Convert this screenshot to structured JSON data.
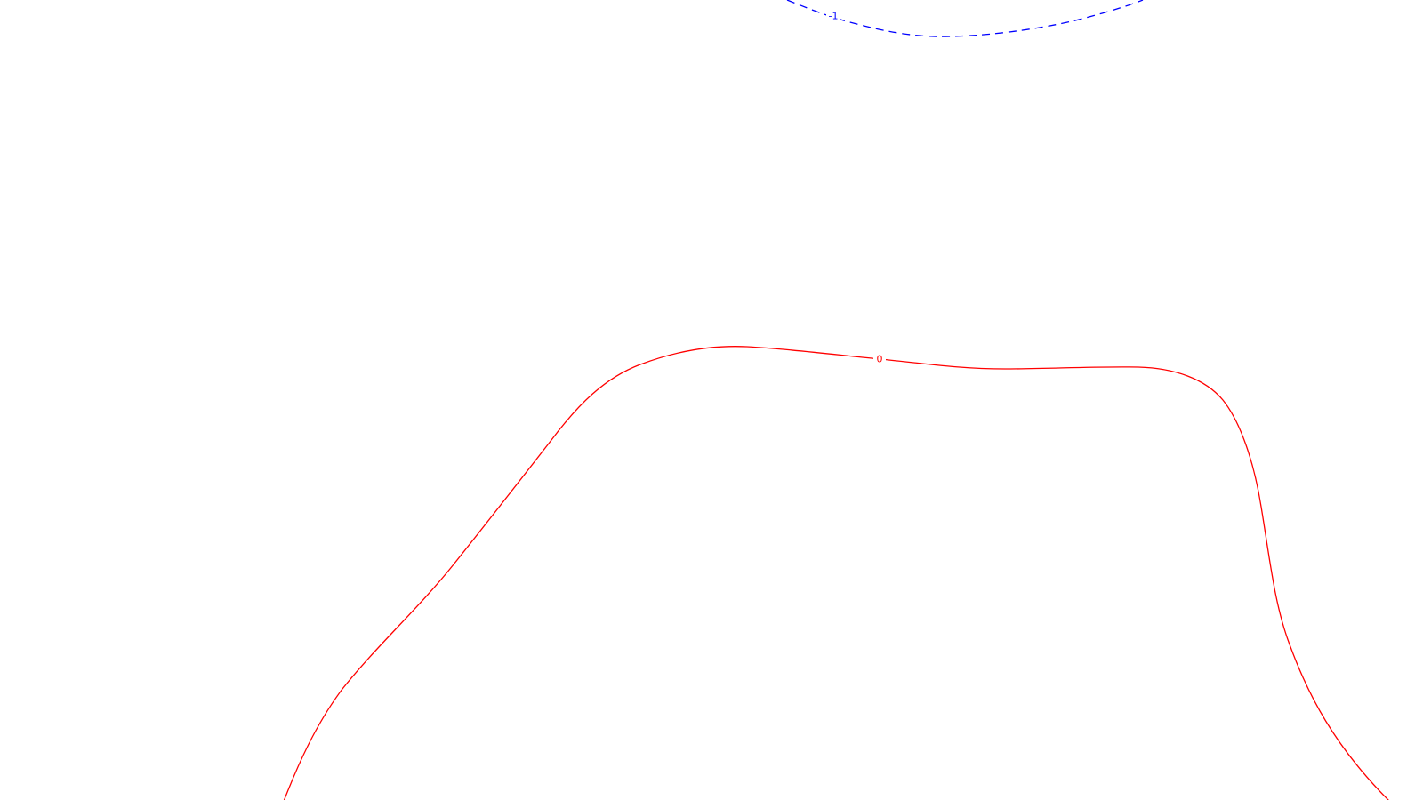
{
  "contours": [
    {
      "level_label": "-1",
      "color": "#0000ff",
      "style": "dashed"
    },
    {
      "level_label": "0",
      "color": "#ff0000",
      "style": "solid"
    }
  ]
}
